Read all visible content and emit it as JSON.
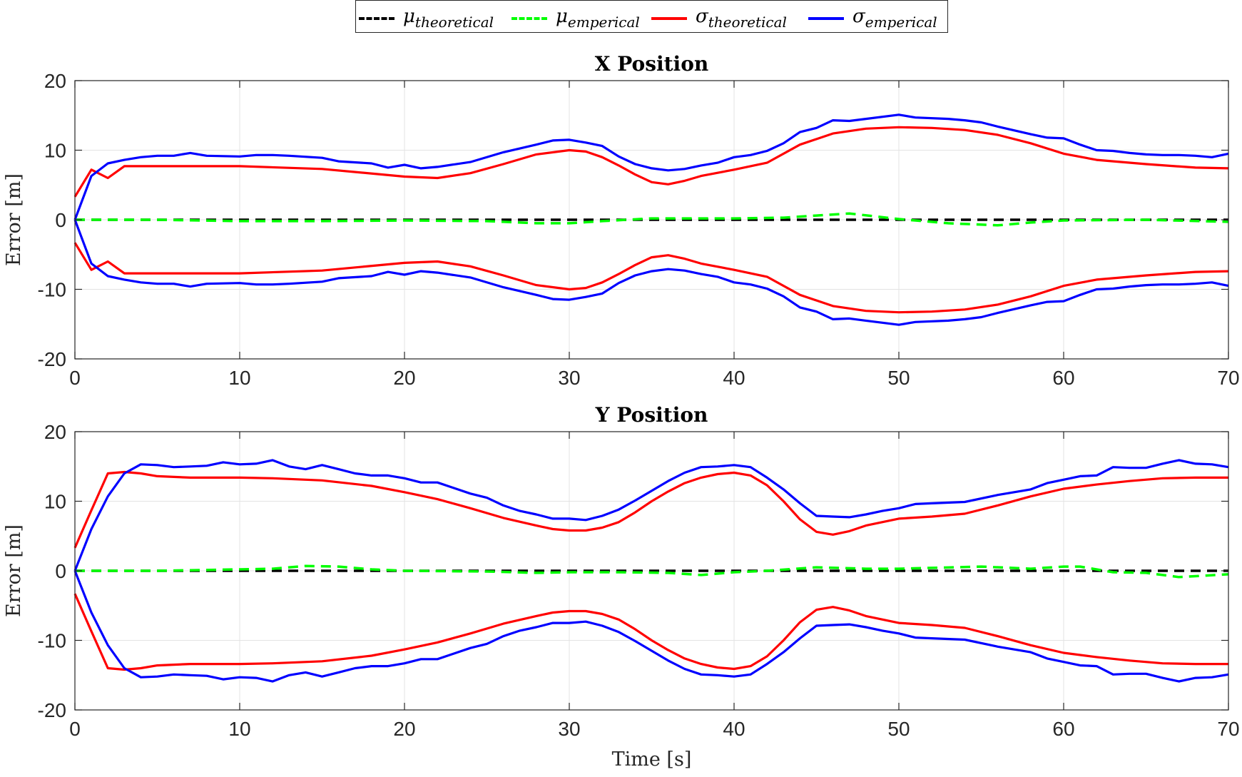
{
  "legend": {
    "items": [
      {
        "base": "μ",
        "sub": "theoretical",
        "color": "#000000",
        "dash": true
      },
      {
        "base": "μ",
        "sub": "emperical",
        "color": "#00ff00",
        "dash": true
      },
      {
        "base": "σ",
        "sub": "theoretical",
        "color": "#ff0000",
        "dash": false
      },
      {
        "base": "σ",
        "sub": "emperical",
        "color": "#0000ff",
        "dash": false
      }
    ]
  },
  "chart_data": [
    {
      "type": "line",
      "title": "X Position",
      "xlabel": "",
      "ylabel": "Error [m]",
      "xlim": [
        0,
        70
      ],
      "ylim": [
        -20,
        20
      ],
      "xticks": [
        0,
        10,
        20,
        30,
        40,
        50,
        60,
        70
      ],
      "yticks": [
        20,
        10,
        0,
        -10,
        -20
      ],
      "grid": true,
      "series": [
        {
          "name": "μtheoretical",
          "color": "#000000",
          "dash": true,
          "x": [
            0,
            70
          ],
          "y": [
            0,
            0
          ]
        },
        {
          "name": "μemperical",
          "color": "#00ff00",
          "dash": true,
          "x": [
            0,
            5,
            10,
            15,
            20,
            25,
            28,
            30,
            32,
            35,
            40,
            43,
            45,
            47,
            50,
            53,
            56,
            58,
            60,
            65,
            70
          ],
          "y": [
            0,
            0,
            -0.2,
            -0.2,
            -0.1,
            -0.2,
            -0.5,
            -0.5,
            -0.2,
            0.2,
            0.2,
            0.3,
            0.6,
            0.9,
            0.1,
            -0.5,
            -0.8,
            -0.4,
            -0.1,
            0,
            -0.3
          ]
        },
        {
          "name": "σtheoretical",
          "color": "#ff0000",
          "dash": false,
          "mirror": true,
          "x": [
            0,
            1,
            2,
            3,
            5,
            10,
            15,
            20,
            22,
            24,
            26,
            28,
            30,
            31,
            32,
            33,
            34,
            35,
            36,
            37,
            38,
            40,
            42,
            44,
            46,
            48,
            50,
            52,
            54,
            56,
            58,
            60,
            62,
            65,
            68,
            70
          ],
          "y": [
            3.3,
            7.2,
            6.0,
            7.7,
            7.7,
            7.7,
            7.3,
            6.2,
            6.0,
            6.7,
            8.0,
            9.4,
            10.0,
            9.8,
            9.0,
            7.8,
            6.5,
            5.4,
            5.1,
            5.6,
            6.3,
            7.2,
            8.2,
            10.8,
            12.4,
            13.1,
            13.3,
            13.2,
            12.9,
            12.2,
            11.0,
            9.5,
            8.6,
            8.0,
            7.5,
            7.4
          ]
        },
        {
          "name": "σemperical",
          "color": "#0000ff",
          "dash": false,
          "mirror": true,
          "x": [
            0,
            1,
            2,
            3,
            4,
            5,
            6,
            7,
            8,
            10,
            11,
            12,
            13,
            15,
            16,
            18,
            19,
            20,
            21,
            22,
            24,
            26,
            28,
            29,
            30,
            31,
            32,
            33,
            34,
            35,
            36,
            37,
            38,
            39,
            40,
            41,
            42,
            43,
            44,
            45,
            46,
            47,
            48,
            50,
            51,
            53,
            54,
            55,
            56,
            58,
            59,
            60,
            61,
            62,
            63,
            64,
            65,
            66,
            67,
            68,
            69,
            70
          ],
          "y": [
            0,
            6.3,
            8.1,
            8.6,
            9.0,
            9.2,
            9.2,
            9.6,
            9.2,
            9.1,
            9.3,
            9.3,
            9.2,
            8.9,
            8.4,
            8.1,
            7.5,
            7.9,
            7.4,
            7.6,
            8.3,
            9.7,
            10.8,
            11.4,
            11.5,
            11.1,
            10.6,
            9.1,
            8.0,
            7.4,
            7.1,
            7.3,
            7.8,
            8.2,
            9.0,
            9.3,
            9.9,
            11.0,
            12.6,
            13.2,
            14.3,
            14.2,
            14.5,
            15.1,
            14.7,
            14.5,
            14.3,
            14.0,
            13.4,
            12.3,
            11.8,
            11.7,
            10.8,
            10.0,
            9.9,
            9.6,
            9.4,
            9.3,
            9.3,
            9.2,
            9.0,
            9.5
          ]
        }
      ]
    },
    {
      "type": "line",
      "title": "Y Position",
      "xlabel": "Time [s]",
      "ylabel": "Error [m]",
      "xlim": [
        0,
        70
      ],
      "ylim": [
        -20,
        20
      ],
      "xticks": [
        0,
        10,
        20,
        30,
        40,
        50,
        60,
        70
      ],
      "yticks": [
        20,
        10,
        0,
        -10,
        -20
      ],
      "grid": true,
      "series": [
        {
          "name": "μtheoretical",
          "color": "#000000",
          "dash": true,
          "x": [
            0,
            70
          ],
          "y": [
            0,
            0
          ]
        },
        {
          "name": "μemperical",
          "color": "#00ff00",
          "dash": true,
          "x": [
            0,
            5,
            10,
            12,
            14,
            16,
            18,
            20,
            25,
            28,
            30,
            33,
            36,
            38,
            40,
            42,
            45,
            48,
            50,
            55,
            58,
            60,
            61,
            63,
            65,
            67,
            70
          ],
          "y": [
            0,
            0,
            0.2,
            0.3,
            0.7,
            0.6,
            0.2,
            0,
            -0.1,
            -0.3,
            -0.2,
            -0.2,
            -0.3,
            -0.6,
            -0.2,
            0,
            0.5,
            0.3,
            0.3,
            0.6,
            0.3,
            0.6,
            0.6,
            -0.2,
            -0.3,
            -0.9,
            -0.5
          ]
        },
        {
          "name": "σtheoretical",
          "color": "#ff0000",
          "dash": false,
          "mirror": true,
          "x": [
            0,
            1,
            2,
            3,
            4,
            5,
            7,
            10,
            12,
            15,
            18,
            20,
            22,
            24,
            26,
            28,
            29,
            30,
            31,
            32,
            33,
            34,
            35,
            36,
            37,
            38,
            39,
            40,
            41,
            42,
            43,
            44,
            45,
            46,
            47,
            48,
            50,
            52,
            54,
            56,
            58,
            60,
            62,
            64,
            66,
            68,
            70
          ],
          "y": [
            3.3,
            8.7,
            14.0,
            14.2,
            14.0,
            13.6,
            13.4,
            13.4,
            13.3,
            13.0,
            12.2,
            11.3,
            10.3,
            9.0,
            7.6,
            6.5,
            6.0,
            5.8,
            5.8,
            6.2,
            7.0,
            8.4,
            10.0,
            11.4,
            12.6,
            13.4,
            13.9,
            14.1,
            13.7,
            12.3,
            10.0,
            7.4,
            5.6,
            5.2,
            5.7,
            6.5,
            7.5,
            7.8,
            8.2,
            9.4,
            10.7,
            11.8,
            12.4,
            12.9,
            13.3,
            13.4,
            13.4
          ]
        },
        {
          "name": "σemperical",
          "color": "#0000ff",
          "dash": false,
          "mirror": true,
          "x": [
            0,
            1,
            2,
            3,
            4,
            5,
            6,
            7,
            8,
            9,
            10,
            11,
            12,
            13,
            14,
            15,
            16,
            17,
            18,
            19,
            20,
            21,
            22,
            23,
            24,
            25,
            26,
            27,
            28,
            29,
            30,
            31,
            32,
            33,
            34,
            35,
            36,
            37,
            38,
            39,
            40,
            41,
            42,
            43,
            44,
            45,
            46,
            47,
            48,
            49,
            50,
            51,
            52,
            54,
            56,
            58,
            59,
            60,
            61,
            62,
            63,
            64,
            65,
            66,
            67,
            68,
            69,
            70
          ],
          "y": [
            0,
            6.0,
            10.7,
            14.0,
            15.3,
            15.2,
            14.9,
            15.0,
            15.1,
            15.6,
            15.3,
            15.4,
            15.9,
            15.0,
            14.6,
            15.2,
            14.6,
            14.0,
            13.7,
            13.7,
            13.3,
            12.7,
            12.7,
            11.9,
            11.1,
            10.5,
            9.4,
            8.6,
            8.1,
            7.5,
            7.5,
            7.3,
            7.9,
            8.8,
            10.1,
            11.5,
            12.9,
            14.1,
            14.9,
            15.0,
            15.2,
            14.9,
            13.4,
            11.7,
            9.7,
            7.9,
            7.8,
            7.7,
            8.1,
            8.6,
            9.0,
            9.6,
            9.7,
            9.9,
            10.9,
            11.7,
            12.6,
            13.1,
            13.6,
            13.7,
            14.9,
            14.8,
            14.8,
            15.4,
            15.9,
            15.4,
            15.3,
            14.9
          ]
        }
      ]
    }
  ]
}
